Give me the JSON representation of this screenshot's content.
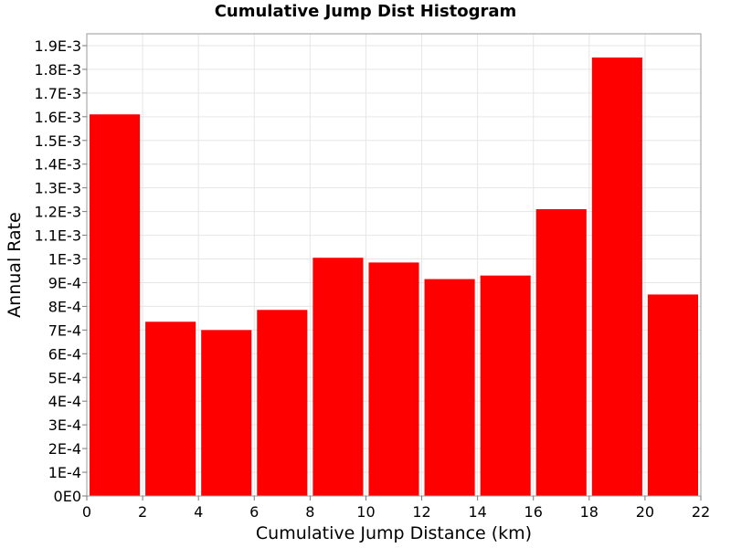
{
  "chart_data": {
    "type": "bar",
    "title": "Cumulative Jump Dist Histogram",
    "xlabel": "Cumulative Jump Distance (km)",
    "ylabel": "Annual Rate",
    "xlim": [
      0,
      22
    ],
    "ylim": [
      0,
      0.00195
    ],
    "grid": true,
    "bar_color": "#ff0000",
    "x_ticks": [
      0,
      2,
      4,
      6,
      8,
      10,
      12,
      14,
      16,
      18,
      20,
      22
    ],
    "y_ticks": [
      {
        "value": 0,
        "label": "0E0"
      },
      {
        "value": 0.0001,
        "label": "1E-4"
      },
      {
        "value": 0.0002,
        "label": "2E-4"
      },
      {
        "value": 0.0003,
        "label": "3E-4"
      },
      {
        "value": 0.0004,
        "label": "4E-4"
      },
      {
        "value": 0.0005,
        "label": "5E-4"
      },
      {
        "value": 0.0006,
        "label": "6E-4"
      },
      {
        "value": 0.0007,
        "label": "7E-4"
      },
      {
        "value": 0.0008,
        "label": "8E-4"
      },
      {
        "value": 0.0009,
        "label": "9E-4"
      },
      {
        "value": 0.001,
        "label": "1E-3"
      },
      {
        "value": 0.0011,
        "label": "1.1E-3"
      },
      {
        "value": 0.0012,
        "label": "1.2E-3"
      },
      {
        "value": 0.0013,
        "label": "1.3E-3"
      },
      {
        "value": 0.0014,
        "label": "1.4E-3"
      },
      {
        "value": 0.0015,
        "label": "1.5E-3"
      },
      {
        "value": 0.0016,
        "label": "1.6E-3"
      },
      {
        "value": 0.0017,
        "label": "1.7E-3"
      },
      {
        "value": 0.0018,
        "label": "1.8E-3"
      },
      {
        "value": 0.0019,
        "label": "1.9E-3"
      }
    ],
    "bins": [
      {
        "x0": 0,
        "x1": 2,
        "value": 0.00161
      },
      {
        "x0": 2,
        "x1": 4,
        "value": 0.000735
      },
      {
        "x0": 4,
        "x1": 6,
        "value": 0.0007
      },
      {
        "x0": 6,
        "x1": 8,
        "value": 0.000785
      },
      {
        "x0": 8,
        "x1": 10,
        "value": 0.001005
      },
      {
        "x0": 10,
        "x1": 12,
        "value": 0.000985
      },
      {
        "x0": 12,
        "x1": 14,
        "value": 0.000915
      },
      {
        "x0": 14,
        "x1": 16,
        "value": 0.00093
      },
      {
        "x0": 16,
        "x1": 18,
        "value": 0.00121
      },
      {
        "x0": 18,
        "x1": 20,
        "value": 0.00185
      },
      {
        "x0": 20,
        "x1": 22,
        "value": 0.00085
      }
    ]
  }
}
